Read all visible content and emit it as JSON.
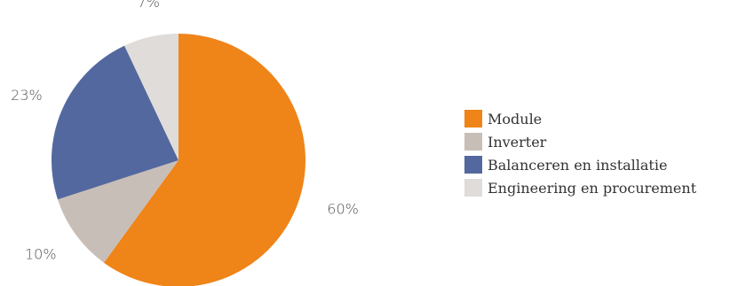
{
  "chart_data": {
    "type": "pie",
    "title": "",
    "start_angle_deg": 0,
    "direction": "clockwise",
    "legend_position": "right",
    "slices": [
      {
        "label": "Module",
        "value": 60,
        "value_label": "60%",
        "color": "#ef8418"
      },
      {
        "label": "Inverter",
        "value": 10,
        "value_label": "10%",
        "color": "#c8beb8"
      },
      {
        "label": "Balanceren en installatie",
        "value": 23,
        "value_label": "23%",
        "color": "#53689e"
      },
      {
        "label": "Engineering en procurement",
        "value": 7,
        "value_label": "7%",
        "color": "#e0dcd9"
      }
    ]
  }
}
